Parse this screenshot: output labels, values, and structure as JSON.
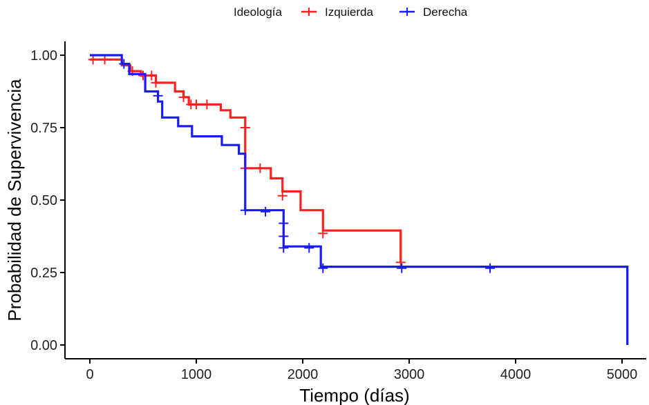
{
  "chart_data": {
    "type": "line",
    "subtype": "kaplan-meier-step",
    "xlabel": "Tiempo (días)",
    "ylabel": "Probabilidad de Supervivencia",
    "xlim": [
      0,
      5000
    ],
    "ylim": [
      0,
      1
    ],
    "x_ticks": [
      0,
      1000,
      2000,
      3000,
      4000,
      5000
    ],
    "x_tick_labels": [
      "0",
      "1000",
      "2000",
      "3000",
      "4000",
      "5000"
    ],
    "y_ticks": [
      0,
      0.25,
      0.5,
      0.75,
      1.0
    ],
    "y_tick_labels": [
      "0.00",
      "0.25",
      "0.50",
      "0.75",
      "1.00"
    ],
    "grid": false,
    "legend": {
      "title": "Ideología",
      "position": "top"
    },
    "series": [
      {
        "name": "Izquierda",
        "color": "#ff2020",
        "steps": [
          [
            0,
            0.985
          ],
          [
            300,
            0.985
          ],
          [
            300,
            0.965
          ],
          [
            380,
            0.965
          ],
          [
            380,
            0.945
          ],
          [
            480,
            0.945
          ],
          [
            480,
            0.93
          ],
          [
            620,
            0.93
          ],
          [
            620,
            0.905
          ],
          [
            800,
            0.905
          ],
          [
            800,
            0.875
          ],
          [
            880,
            0.875
          ],
          [
            880,
            0.855
          ],
          [
            930,
            0.855
          ],
          [
            930,
            0.83
          ],
          [
            1230,
            0.83
          ],
          [
            1230,
            0.81
          ],
          [
            1320,
            0.81
          ],
          [
            1320,
            0.785
          ],
          [
            1460,
            0.785
          ],
          [
            1460,
            0.61
          ],
          [
            1700,
            0.61
          ],
          [
            1700,
            0.575
          ],
          [
            1810,
            0.575
          ],
          [
            1810,
            0.53
          ],
          [
            1980,
            0.53
          ],
          [
            1980,
            0.465
          ],
          [
            2190,
            0.465
          ],
          [
            2190,
            0.395
          ],
          [
            2920,
            0.395
          ],
          [
            2920,
            0.285
          ]
        ],
        "censored": [
          [
            30,
            0.985
          ],
          [
            140,
            0.985
          ],
          [
            400,
            0.945
          ],
          [
            500,
            0.93
          ],
          [
            580,
            0.93
          ],
          [
            620,
            0.905
          ],
          [
            880,
            0.855
          ],
          [
            950,
            0.83
          ],
          [
            1000,
            0.83
          ],
          [
            1100,
            0.83
          ],
          [
            1460,
            0.75
          ],
          [
            1460,
            0.61
          ],
          [
            1600,
            0.61
          ],
          [
            1810,
            0.515
          ],
          [
            2190,
            0.385
          ],
          [
            2920,
            0.285
          ]
        ]
      },
      {
        "name": "Derecha",
        "color": "#1a1aff",
        "steps": [
          [
            0,
            1.0
          ],
          [
            300,
            1.0
          ],
          [
            300,
            0.97
          ],
          [
            370,
            0.97
          ],
          [
            370,
            0.935
          ],
          [
            520,
            0.935
          ],
          [
            520,
            0.875
          ],
          [
            640,
            0.875
          ],
          [
            640,
            0.84
          ],
          [
            680,
            0.84
          ],
          [
            680,
            0.785
          ],
          [
            830,
            0.785
          ],
          [
            830,
            0.755
          ],
          [
            960,
            0.755
          ],
          [
            960,
            0.72
          ],
          [
            1240,
            0.72
          ],
          [
            1240,
            0.69
          ],
          [
            1400,
            0.69
          ],
          [
            1400,
            0.66
          ],
          [
            1460,
            0.66
          ],
          [
            1460,
            0.465
          ],
          [
            1820,
            0.465
          ],
          [
            1820,
            0.34
          ],
          [
            2170,
            0.34
          ],
          [
            2170,
            0.27
          ],
          [
            5050,
            0.27
          ],
          [
            5050,
            0.0
          ]
        ],
        "censored": [
          [
            320,
            0.97
          ],
          [
            640,
            0.86
          ],
          [
            1460,
            0.465
          ],
          [
            1650,
            0.46
          ],
          [
            1820,
            0.42
          ],
          [
            1820,
            0.375
          ],
          [
            1820,
            0.335
          ],
          [
            2060,
            0.335
          ],
          [
            2190,
            0.265
          ],
          [
            2930,
            0.265
          ],
          [
            3760,
            0.265
          ]
        ]
      }
    ]
  }
}
